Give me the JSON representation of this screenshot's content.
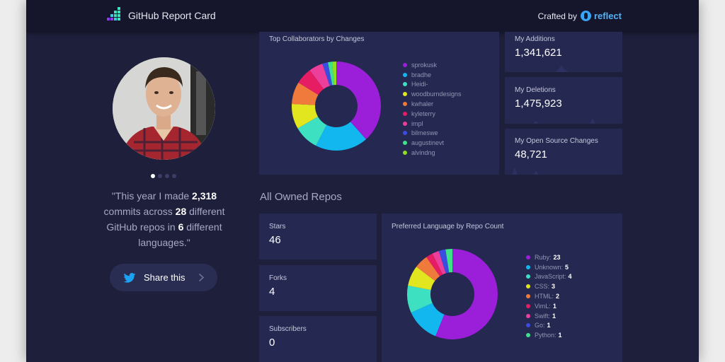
{
  "header": {
    "title": "GitHub Report Card",
    "crafted_by": "Crafted by",
    "brand": "reflect"
  },
  "profile": {
    "avatar_alt": "User photo",
    "slide_index": 1,
    "slide_count": 4,
    "quote": {
      "p1": "\"This year I made ",
      "commits": "2,318",
      "p2": " commits across ",
      "repos": "28",
      "p3": " different GitHub repos in ",
      "languages": "6",
      "p4": " different languages.\""
    },
    "share_label": "Share this"
  },
  "collaborators": {
    "title": "Top Collaborators by Changes",
    "legend": [
      {
        "name": "sprokusk",
        "color": "#9b1fd8"
      },
      {
        "name": "bradhe",
        "color": "#12b7ef"
      },
      {
        "name": "Heidi-",
        "color": "#3ee0c2"
      },
      {
        "name": "woodburndesigns",
        "color": "#e2e61f"
      },
      {
        "name": "kwhaler",
        "color": "#ef7a3c"
      },
      {
        "name": "kyleterry",
        "color": "#e71d63"
      },
      {
        "name": "impl",
        "color": "#ec3f9b"
      },
      {
        "name": "bilmeswe",
        "color": "#3b4de0"
      },
      {
        "name": "augustinevt",
        "color": "#3ee28a"
      },
      {
        "name": "alvindng",
        "color": "#8ede22"
      }
    ]
  },
  "stats_top": [
    {
      "label": "My Additions",
      "value": "1,341,621"
    },
    {
      "label": "My Deletions",
      "value": "1,475,923"
    },
    {
      "label": "My Open Source Changes",
      "value": "48,721"
    }
  ],
  "repos_section": {
    "title": "All Owned Repos",
    "stats": [
      {
        "label": "Stars",
        "value": "46"
      },
      {
        "label": "Forks",
        "value": "4"
      },
      {
        "label": "Subscribers",
        "value": "0"
      }
    ]
  },
  "languages": {
    "title": "Preferred Language by Repo Count",
    "legend": [
      {
        "name": "Ruby:",
        "count": "23",
        "color": "#9b1fd8"
      },
      {
        "name": "Unknown:",
        "count": "5",
        "color": "#12b7ef"
      },
      {
        "name": "JavaScript:",
        "count": "4",
        "color": "#3ee0c2"
      },
      {
        "name": "CSS:",
        "count": "3",
        "color": "#e2e61f"
      },
      {
        "name": "HTML:",
        "count": "2",
        "color": "#ef7a3c"
      },
      {
        "name": "VimL:",
        "count": "1",
        "color": "#e71d63"
      },
      {
        "name": "Swift:",
        "count": "1",
        "color": "#ec3f9b"
      },
      {
        "name": "Go:",
        "count": "1",
        "color": "#3b4de0"
      },
      {
        "name": "Python:",
        "count": "1",
        "color": "#3ee28a"
      }
    ]
  },
  "chart_data": [
    {
      "type": "pie",
      "title": "Top Collaborators by Changes",
      "donut": true,
      "categories": [
        "sprokusk",
        "bradhe",
        "Heidi-",
        "woodburndesigns",
        "kwhaler",
        "kyleterry",
        "impl",
        "bilmeswe",
        "augustinevt",
        "alvindng"
      ],
      "values": [
        38,
        19,
        9,
        9,
        8,
        6,
        5,
        2,
        1.5,
        1.5
      ],
      "colors": [
        "#9b1fd8",
        "#12b7ef",
        "#3ee0c2",
        "#e2e61f",
        "#ef7a3c",
        "#e71d63",
        "#ec3f9b",
        "#3b4de0",
        "#3ee28a",
        "#8ede22"
      ],
      "legend": "right"
    },
    {
      "type": "pie",
      "title": "Preferred Language by Repo Count",
      "donut": true,
      "categories": [
        "Ruby",
        "Unknown",
        "JavaScript",
        "CSS",
        "HTML",
        "VimL",
        "Swift",
        "Go",
        "Python"
      ],
      "values": [
        23,
        5,
        4,
        3,
        2,
        1,
        1,
        1,
        1
      ],
      "colors": [
        "#9b1fd8",
        "#12b7ef",
        "#3ee0c2",
        "#e2e61f",
        "#ef7a3c",
        "#e71d63",
        "#ec3f9b",
        "#3b4de0",
        "#3ee28a"
      ],
      "legend": "right"
    }
  ]
}
